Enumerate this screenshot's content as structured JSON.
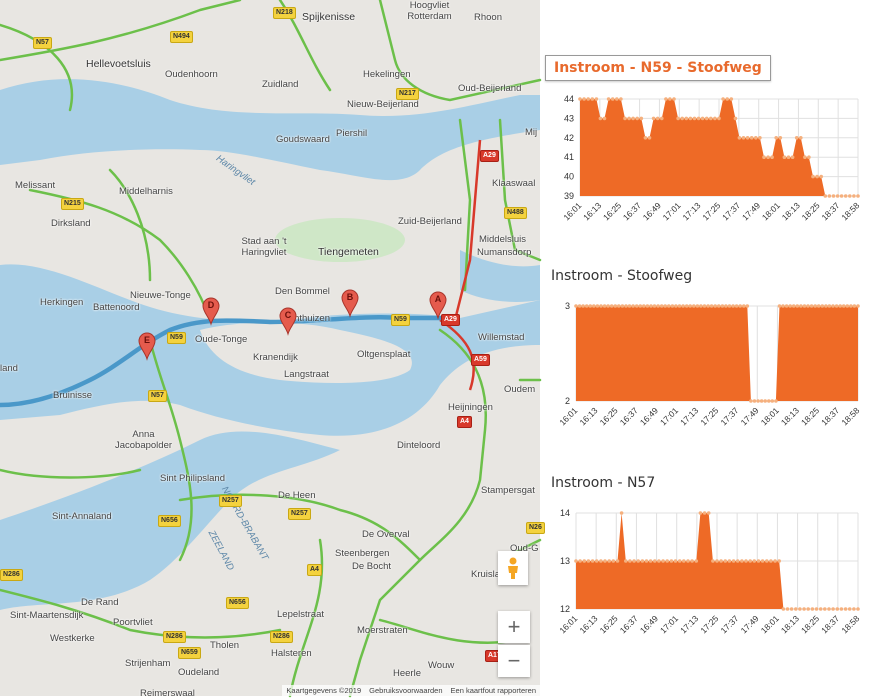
{
  "map": {
    "places": [
      {
        "name": "Spijkenisse",
        "big": true
      },
      {
        "name": "Hoogvliet Rotterdam"
      },
      {
        "name": "Rhoon"
      },
      {
        "name": "Hellevoetsluis",
        "big": true
      },
      {
        "name": "Oudenhoorn"
      },
      {
        "name": "Zuidland"
      },
      {
        "name": "Hekelingen"
      },
      {
        "name": "Oud-Beijerland"
      },
      {
        "name": "Nieuw-Beijerland"
      },
      {
        "name": "Piershil"
      },
      {
        "name": "Goudswaard"
      },
      {
        "name": "Mij"
      },
      {
        "name": "Klaaswaal"
      },
      {
        "name": "Melissant"
      },
      {
        "name": "Middelharnis"
      },
      {
        "name": "Dirksland"
      },
      {
        "name": "Zuid-Beijerland"
      },
      {
        "name": "Middelsluis"
      },
      {
        "name": "Numansdorp"
      },
      {
        "name": "Stad aan 't Haringvliet"
      },
      {
        "name": "Tiengemeten",
        "big": true
      },
      {
        "name": "Haringvliet",
        "water": true
      },
      {
        "name": "Den Bommel"
      },
      {
        "name": "Nieuwe-Tonge"
      },
      {
        "name": "Herkingen"
      },
      {
        "name": "Battenoord"
      },
      {
        "name": "Oude-Tonge"
      },
      {
        "name": "Achthuizen"
      },
      {
        "name": "Kranendijk"
      },
      {
        "name": "Oltgensplaat"
      },
      {
        "name": "Langstraat"
      },
      {
        "name": "Willemstad"
      },
      {
        "name": "land"
      },
      {
        "name": "Bruinisse"
      },
      {
        "name": "Oudem"
      },
      {
        "name": "Heijningen"
      },
      {
        "name": "Anna Jacobapolder"
      },
      {
        "name": "Dinteloord"
      },
      {
        "name": "Sint Philipsland"
      },
      {
        "name": "De Heen"
      },
      {
        "name": "Stampersgat"
      },
      {
        "name": "Sint-Annaland"
      },
      {
        "name": "NOORD-BRABANT",
        "water": true
      },
      {
        "name": "ZEELAND",
        "water": true
      },
      {
        "name": "De Overval"
      },
      {
        "name": "Oud-G"
      },
      {
        "name": "Steenbergen"
      },
      {
        "name": "De Bocht"
      },
      {
        "name": "Kruisland"
      },
      {
        "name": "De Rand"
      },
      {
        "name": "Sint-Maartensdijk"
      },
      {
        "name": "Poortvliet"
      },
      {
        "name": "Lepelstraat"
      },
      {
        "name": "Westkerke"
      },
      {
        "name": "Moerstraten"
      },
      {
        "name": "Tholen"
      },
      {
        "name": "Strijenham"
      },
      {
        "name": "Halsteren"
      },
      {
        "name": "Oudeland"
      },
      {
        "name": "Heerle"
      },
      {
        "name": "Wouw"
      },
      {
        "name": "Reimerswaal"
      }
    ],
    "shields": [
      "N218",
      "N57",
      "N494",
      "N217",
      "N215",
      "A29",
      "N488",
      "N59",
      "N59",
      "A29",
      "A59",
      "N57",
      "A4",
      "N257",
      "N257",
      "N656",
      "N286",
      "N656",
      "N286",
      "N286",
      "N659",
      "A4",
      "A17",
      "N26"
    ],
    "markers": [
      "A",
      "B",
      "C",
      "D",
      "E"
    ],
    "zoom_in": "+",
    "zoom_out": "−",
    "pegman_icon": "pegman-icon",
    "attribution": {
      "data": "Kaartgegevens ©2019",
      "terms": "Gebruiksvoorwaarden",
      "report": "Een kaartfout rapporteren"
    }
  },
  "colors": {
    "chart_fill": "#ee6a26",
    "chart_point": "#f5b07e",
    "title_accent": "#e86a2d",
    "road_green": "#6cc04a",
    "route": "#4a98c9",
    "water": "#a9cfe6",
    "land": "#e8e6e2",
    "marker": "#e55b4d"
  },
  "chart_data": [
    {
      "type": "area",
      "title": "Instroom - N59 - Stoofweg",
      "x_ticks": [
        "16:01",
        "16:13",
        "16:25",
        "16:37",
        "16:49",
        "17:01",
        "17:13",
        "17:25",
        "17:37",
        "17:49",
        "18:01",
        "18:13",
        "18:25",
        "18:37",
        "18:58"
      ],
      "y_ticks": [
        39,
        40,
        41,
        42,
        43,
        44
      ],
      "ylim": [
        39,
        44
      ],
      "values": [
        44,
        44,
        44,
        44,
        44,
        43,
        43,
        44,
        44,
        44,
        44,
        43,
        43,
        43,
        43,
        43,
        42,
        42,
        43,
        43,
        43,
        44,
        44,
        44,
        43,
        43,
        43,
        43,
        43,
        43,
        43,
        43,
        43,
        43,
        43,
        44,
        44,
        44,
        43,
        42,
        42,
        42,
        42,
        42,
        42,
        41,
        41,
        41,
        42,
        42,
        41,
        41,
        41,
        42,
        42,
        41,
        41,
        40,
        40,
        40,
        39,
        39,
        39,
        39,
        39,
        39,
        39,
        39,
        39
      ],
      "grid": true
    },
    {
      "type": "area",
      "title": "Instroom - Stoofweg",
      "x_ticks": [
        "16:01",
        "16:13",
        "16:25",
        "16:37",
        "16:49",
        "17:01",
        "17:13",
        "17:25",
        "17:37",
        "17:49",
        "18:01",
        "18:13",
        "18:25",
        "18:37",
        "18:58"
      ],
      "y_ticks": [
        2,
        3
      ],
      "ylim": [
        2,
        3
      ],
      "values": [
        3,
        3,
        3,
        3,
        3,
        3,
        3,
        3,
        3,
        3,
        3,
        3,
        3,
        3,
        3,
        3,
        3,
        3,
        3,
        3,
        3,
        3,
        3,
        3,
        3,
        3,
        3,
        3,
        3,
        3,
        3,
        3,
        3,
        3,
        3,
        3,
        3,
        3,
        3,
        3,
        3,
        3,
        3,
        3,
        3,
        3,
        3,
        3,
        3,
        2,
        2,
        2,
        2,
        2,
        2,
        2,
        2,
        3,
        3,
        3,
        3,
        3,
        3,
        3,
        3,
        3,
        3,
        3,
        3,
        3,
        3,
        3,
        3,
        3,
        3,
        3,
        3,
        3,
        3,
        3
      ],
      "grid": true
    },
    {
      "type": "area",
      "title": "Instroom - N57",
      "x_ticks": [
        "16:01",
        "16:13",
        "16:25",
        "16:37",
        "16:49",
        "17:01",
        "17:13",
        "17:25",
        "17:37",
        "17:49",
        "18:01",
        "18:13",
        "18:25",
        "18:37",
        "18:58"
      ],
      "y_ticks": [
        12,
        13,
        14
      ],
      "ylim": [
        12,
        14
      ],
      "values": [
        13,
        13,
        13,
        13,
        13,
        13,
        13,
        13,
        13,
        13,
        13,
        14,
        13,
        13,
        13,
        13,
        13,
        13,
        13,
        13,
        13,
        13,
        13,
        13,
        13,
        13,
        13,
        13,
        13,
        13,
        14,
        14,
        14,
        13,
        13,
        13,
        13,
        13,
        13,
        13,
        13,
        13,
        13,
        13,
        13,
        13,
        13,
        13,
        13,
        13,
        12,
        12,
        12,
        12,
        12,
        12,
        12,
        12,
        12,
        12,
        12,
        12,
        12,
        12,
        12,
        12,
        12,
        12,
        12
      ],
      "grid": true
    }
  ]
}
